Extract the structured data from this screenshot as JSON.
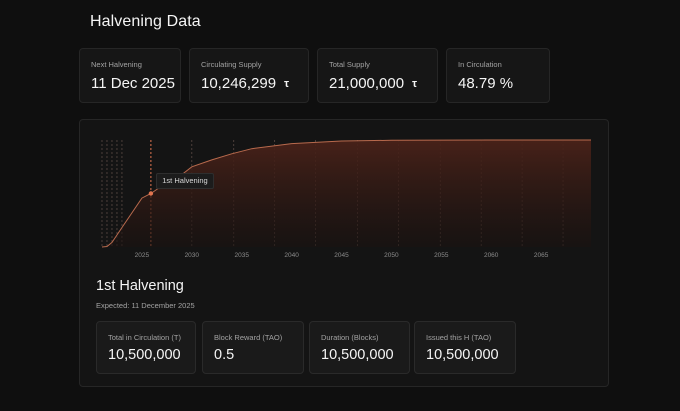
{
  "page": {
    "title": "Halvening Data"
  },
  "stats": [
    {
      "label": "Next Halvening",
      "value": "11 Dec 2025",
      "unit": ""
    },
    {
      "label": "Circulating Supply",
      "value": "10,246,299",
      "unit": "τ"
    },
    {
      "label": "Total Supply",
      "value": "21,000,000",
      "unit": "τ"
    },
    {
      "label": "In Circulation",
      "value": "48.79 %",
      "unit": ""
    }
  ],
  "chart_data": {
    "type": "area",
    "title": "",
    "xlabel": "",
    "ylabel": "",
    "x_ticks": [
      2025,
      2030,
      2035,
      2040,
      2045,
      2050,
      2055,
      2060,
      2065
    ],
    "xlim": [
      2020.5,
      2070
    ],
    "ylim": [
      0,
      21000000
    ],
    "grid": false,
    "series": [
      {
        "x": [
          2021,
          2021.5,
          2022,
          2023,
          2024,
          2025,
          2025.9,
          2027,
          2029,
          2030,
          2032,
          2034,
          2036,
          2040,
          2045,
          2050,
          2055,
          2060,
          2065,
          2070
        ],
        "y": [
          0,
          100000,
          900000,
          3800000,
          6700000,
          9600000,
          10500000,
          12000000,
          14200000,
          15750000,
          17100000,
          18300000,
          19300000,
          20300000,
          20800000,
          20950000,
          20990000,
          21000000,
          21000000,
          21000000
        ]
      }
    ],
    "halvening_years": [
      2021,
      2021.5,
      2022,
      2022.5,
      2023,
      2025.9,
      2030,
      2034.2,
      2038.3,
      2042.4,
      2046.6,
      2050.7,
      2054.9,
      2059,
      2063.1,
      2067.2
    ],
    "highlight": {
      "x": 2025.9,
      "y": 10500000,
      "label": "1st Halvening"
    }
  },
  "halvening": {
    "title": "1st Halvening",
    "expected": "Expected: 11 December 2025",
    "details": [
      {
        "label": "Total in Circulation (T)",
        "value": "10,500,000"
      },
      {
        "label": "Block Reward (TAO)",
        "value": "0.5"
      },
      {
        "label": "Duration (Blocks)",
        "value": "10,500,000"
      },
      {
        "label": "Issued this H (TAO)",
        "value": "10,500,000"
      }
    ]
  },
  "colors": {
    "accent": "#e0744f",
    "line": "#b86a4d",
    "fill": "#4a2219"
  }
}
